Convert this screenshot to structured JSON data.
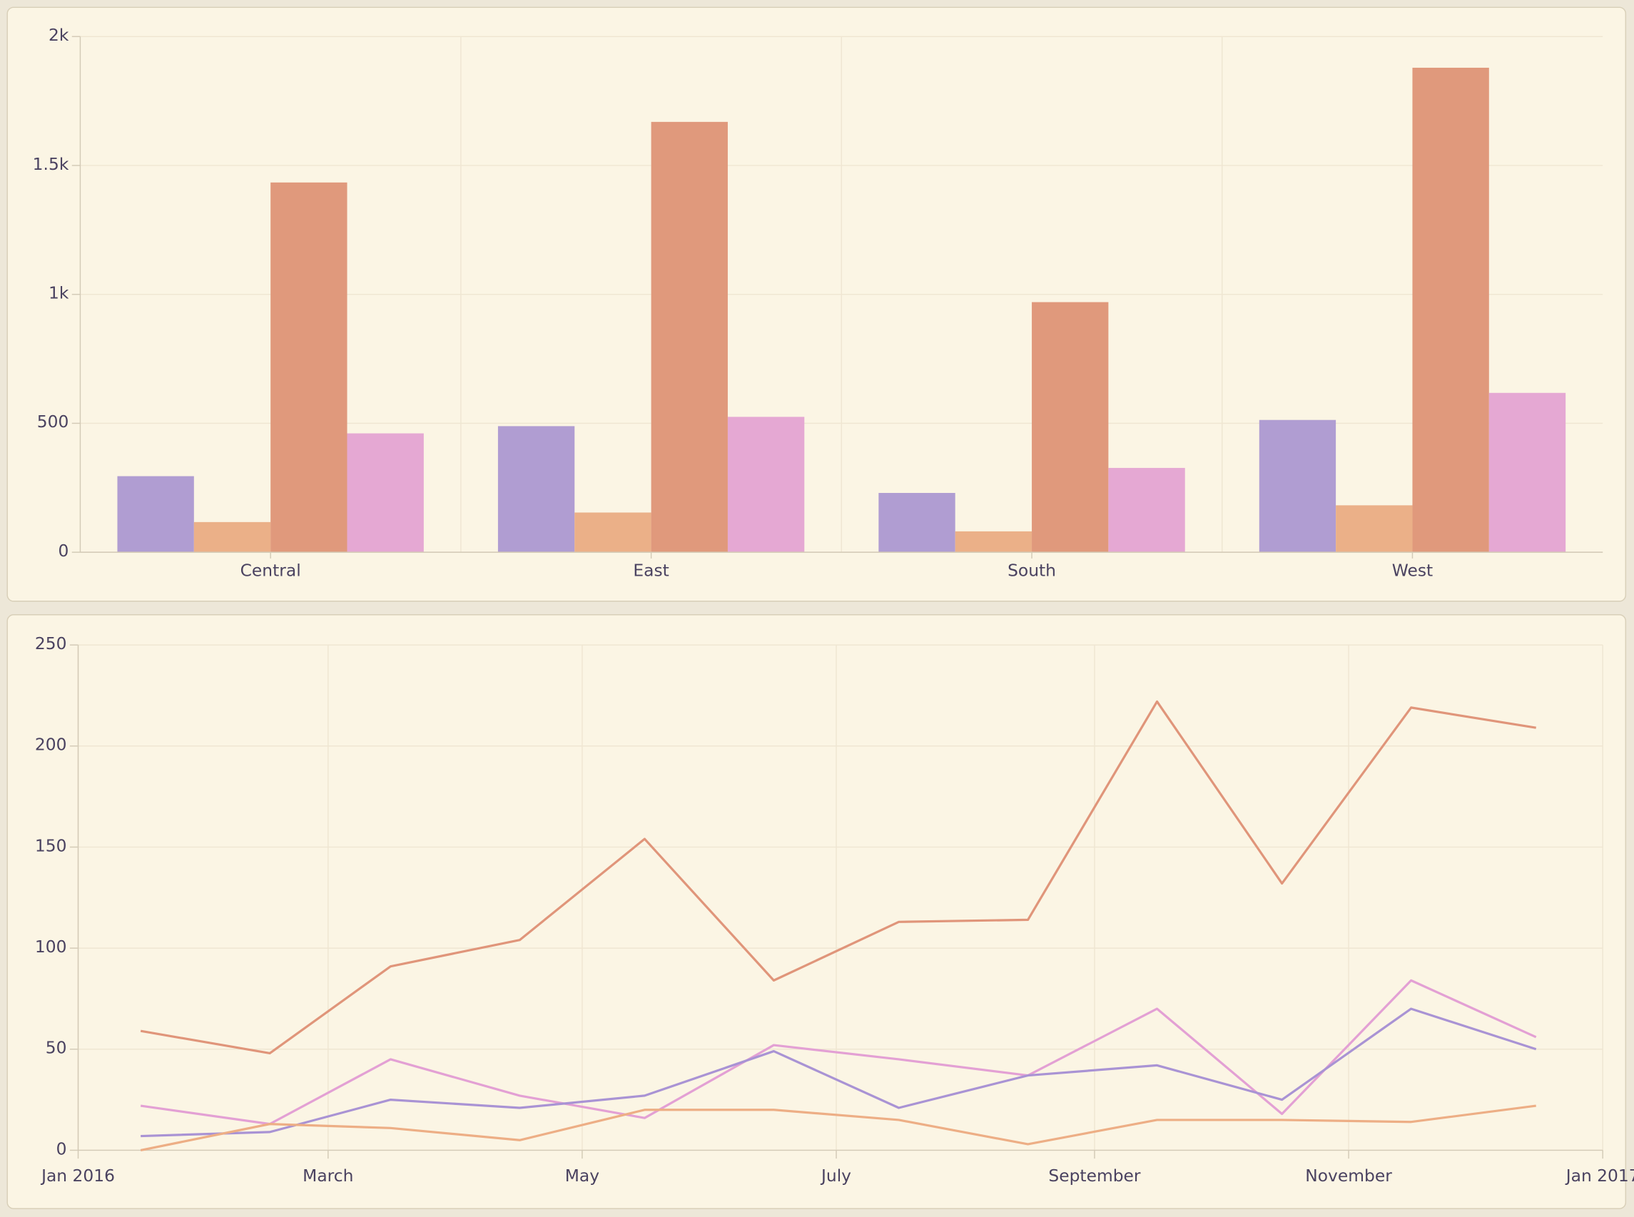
{
  "chart_data": [
    {
      "type": "bar",
      "categories": [
        "Central",
        "East",
        "South",
        "West"
      ],
      "series": [
        {
          "color": "#b09dd2",
          "values": [
            295,
            489,
            230,
            513
          ]
        },
        {
          "color": "#ebb088",
          "values": [
            117,
            154,
            81,
            182
          ]
        },
        {
          "color": "#e0997c",
          "values": [
            1434,
            1669,
            970,
            1879
          ]
        },
        {
          "color": "#e5a8d3",
          "values": [
            461,
            525,
            327,
            618
          ]
        }
      ],
      "ylim": [
        0,
        2000
      ],
      "yticks": [
        0,
        500,
        1000,
        1500,
        2000
      ],
      "ytick_labels": [
        "0",
        "500",
        "1k",
        "1.5k",
        "2k"
      ],
      "grid": true
    },
    {
      "type": "line",
      "x": [
        "2016-01",
        "2016-02",
        "2016-03",
        "2016-04",
        "2016-05",
        "2016-06",
        "2016-07",
        "2016-08",
        "2016-09",
        "2016-10",
        "2016-11",
        "2016-12"
      ],
      "series": [
        {
          "color": "#e0957a",
          "values": [
            59,
            48,
            91,
            104,
            154,
            84,
            113,
            114,
            222,
            132,
            219,
            209
          ]
        },
        {
          "color": "#e3a0d4",
          "values": [
            22,
            13,
            45,
            27,
            16,
            52,
            45,
            37,
            70,
            18,
            84,
            56
          ]
        },
        {
          "color": "#a993d4",
          "values": [
            7,
            9,
            25,
            21,
            27,
            49,
            21,
            37,
            42,
            25,
            70,
            50
          ]
        },
        {
          "color": "#edae85",
          "values": [
            0,
            13,
            11,
            5,
            20,
            20,
            15,
            3,
            15,
            15,
            14,
            22
          ]
        }
      ],
      "ylim": [
        0,
        250
      ],
      "yticks": [
        0,
        50,
        100,
        150,
        200,
        250
      ],
      "ytick_labels": [
        "0",
        "50",
        "100",
        "150",
        "200",
        "250"
      ],
      "xlim": [
        "2016-01-01",
        "2017-01-01"
      ],
      "xticks": [
        "2016-01-01",
        "2016-03-01",
        "2016-05-01",
        "2016-07-01",
        "2016-09-01",
        "2016-11-01",
        "2017-01-01"
      ],
      "xtick_labels": [
        "Jan 2016",
        "March",
        "May",
        "July",
        "September",
        "November",
        "Jan 2017"
      ],
      "grid": true
    }
  ],
  "colors": {
    "panel": "#fbf5e4",
    "background": "#ede7d8",
    "text": "#4a4260"
  }
}
